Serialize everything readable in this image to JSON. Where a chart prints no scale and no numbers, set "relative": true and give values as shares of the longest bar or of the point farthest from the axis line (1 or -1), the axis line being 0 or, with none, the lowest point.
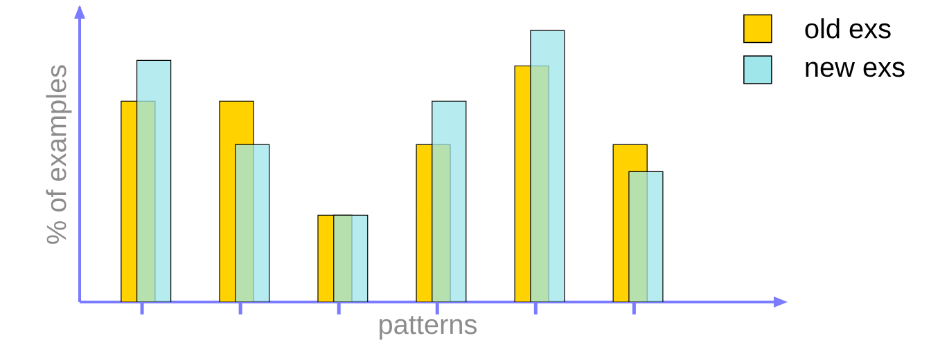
{
  "chart_data": {
    "type": "bar",
    "relative": true,
    "xlabel": "patterns",
    "ylabel": "% of examples",
    "categories": [
      null,
      null,
      null,
      null,
      null,
      null
    ],
    "series": [
      {
        "name": "old exs",
        "color": "#ffd200",
        "values": [
          0.74,
          0.74,
          0.32,
          0.58,
          0.87,
          0.58
        ]
      },
      {
        "name": "new exs",
        "color": "#9ee6ea",
        "values": [
          0.89,
          0.58,
          0.32,
          0.74,
          1,
          0.48
        ]
      }
    ],
    "legend": "top right",
    "grid": false
  }
}
